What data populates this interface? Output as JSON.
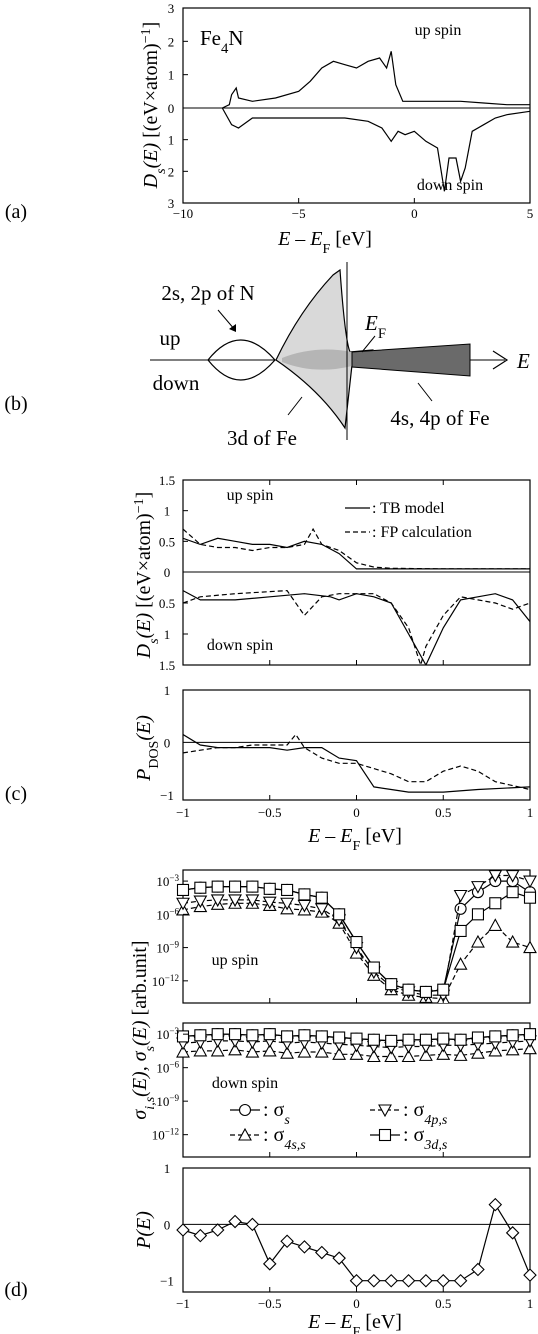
{
  "panel_labels": {
    "a": "(a)",
    "b": "(b)",
    "c": "(c)",
    "d": "(d)"
  },
  "xlabel": {
    "E": "E",
    "dash": "–",
    "EF": "E",
    "F_sub": "F",
    "unit": "[eV]"
  },
  "a": {
    "title": "Fe",
    "title_sub": "4",
    "title_end": "N",
    "up_label": "up  spin",
    "down_label": "down  spin",
    "ylabel": "D",
    "ylabel_sub": "s",
    "ylabel_arg": "(E)",
    "yunit": "[(eV×atom)",
    "yunit_exp": "−1",
    "yunit_close": "]",
    "xticks": [
      "−10",
      "−5",
      "0",
      "5"
    ],
    "up_ticks": [
      "3",
      "2",
      "1",
      "0"
    ],
    "down_ticks": [
      "1",
      "2",
      "3"
    ]
  },
  "b": {
    "n_label": "2s, 2p of N",
    "ef_label": "E",
    "ef_sub": "F",
    "up": "up",
    "down": "down",
    "fe3d": "3d of Fe",
    "fe4sp": "4s, 4p of Fe",
    "axis": "E"
  },
  "c": {
    "up_label": "up  spin",
    "down_label": "down  spin",
    "legend": [
      ": TB  model",
      ": FP  calculation"
    ],
    "up_ticks": [
      "1.5",
      "1",
      "0.5",
      "0"
    ],
    "down_ticks": [
      "0.5",
      "1",
      "1.5"
    ],
    "p_ticks": [
      "1",
      "0",
      "−1"
    ],
    "xticks": [
      "−1",
      "−0.5",
      "0",
      "0.5",
      "1"
    ],
    "ylabel": "D",
    "ylabel_sub": "s",
    "ylabel_arg": "(E)",
    "yunit": "[(eV×atom)",
    "yunit_exp": "−1",
    "yunit_close": "]",
    "pylabel": "P",
    "pylabel_sub": "DOS",
    "pylabel_arg": "(E)"
  },
  "d": {
    "up_label": "up  spin",
    "down_label": "down  spin",
    "yticks": [
      {
        "b": "10",
        "e": "−3"
      },
      {
        "b": "10",
        "e": "−6"
      },
      {
        "b": "10",
        "e": "−9"
      },
      {
        "b": "10",
        "e": "−12"
      }
    ],
    "p_ticks": [
      "1",
      "0",
      "−1"
    ],
    "xticks": [
      "−1",
      "−0.5",
      "0",
      "0.5",
      "1"
    ],
    "ylabel": "σ",
    "ylabel_sub": "i,s",
    "ylabel_arg": "(E),  σ",
    "ylabel_sub2": "s",
    "ylabel_arg2": "(E)",
    "yunit": "[arb.unit]",
    "pylabel": "P(E)",
    "legend": [
      {
        "marker": "circle",
        "sym": ": σ",
        "sub": "s"
      },
      {
        "marker": "triangle",
        "sym": ": σ",
        "sub": "4s,s"
      },
      {
        "marker": "nabla",
        "sym": ": σ",
        "sub": "4p,s"
      },
      {
        "marker": "square",
        "sym": ": σ",
        "sub": "3d,s"
      }
    ]
  },
  "chart_data": [
    {
      "type": "line",
      "title": "Fe4N",
      "xlabel": "E − EF [eV]",
      "ylabel": "Ds(E) [(eV×atom)−1]",
      "xlim": [
        -10,
        5
      ],
      "ylim": [
        -3,
        3
      ],
      "series": [
        {
          "name": "up spin",
          "x": [
            -8.3,
            -8.0,
            -7.9,
            -7.7,
            -7.6,
            -7.0,
            -6.0,
            -5.0,
            -4.5,
            -4.0,
            -3.5,
            -3.0,
            -2.5,
            -2.0,
            -1.5,
            -1.2,
            -1.0,
            -0.8,
            -0.5,
            0.0,
            0.5,
            1.0,
            2.0,
            3.0,
            4.0,
            5.0
          ],
          "y": [
            0.0,
            0.1,
            0.4,
            0.6,
            0.3,
            0.2,
            0.3,
            0.5,
            0.8,
            1.2,
            1.4,
            1.3,
            1.2,
            1.4,
            1.5,
            1.2,
            1.7,
            0.7,
            0.2,
            0.2,
            0.2,
            0.2,
            0.2,
            0.15,
            0.1,
            0.1
          ]
        },
        {
          "name": "down spin",
          "x": [
            -8.3,
            -7.9,
            -7.6,
            -7.0,
            -6.0,
            -5.0,
            -4.0,
            -3.0,
            -2.0,
            -1.4,
            -1.2,
            -1.0,
            -0.7,
            -0.4,
            0.0,
            0.5,
            1.0,
            1.3,
            1.5,
            1.8,
            2.0,
            2.2,
            2.5,
            3.0,
            3.5,
            4.0,
            5.0
          ],
          "y": [
            0.0,
            -0.5,
            -0.6,
            -0.3,
            -0.3,
            -0.3,
            -0.3,
            -0.3,
            -0.4,
            -0.6,
            -0.8,
            -1.0,
            -0.7,
            -0.8,
            -0.7,
            -1.0,
            -1.2,
            -2.5,
            -1.5,
            -1.5,
            -2.2,
            -1.8,
            -0.7,
            -0.5,
            -0.3,
            -0.2,
            -0.1
          ]
        }
      ]
    },
    {
      "type": "line",
      "xlabel": "E − EF [eV]",
      "ylabel": "Ds(E) up",
      "xlim": [
        -1,
        1
      ],
      "ylim": [
        0,
        1.5
      ],
      "series": [
        {
          "name": "TB model",
          "x": [
            -1.0,
            -0.9,
            -0.8,
            -0.7,
            -0.6,
            -0.5,
            -0.4,
            -0.3,
            -0.2,
            -0.1,
            0.0,
            0.1,
            0.2,
            0.5,
            1.0
          ],
          "y": [
            0.55,
            0.45,
            0.55,
            0.5,
            0.45,
            0.45,
            0.4,
            0.5,
            0.45,
            0.3,
            0.05,
            0.05,
            0.05,
            0.05,
            0.05
          ]
        },
        {
          "name": "FP calculation",
          "x": [
            -1.0,
            -0.9,
            -0.8,
            -0.7,
            -0.6,
            -0.5,
            -0.4,
            -0.3,
            -0.25,
            -0.2,
            -0.1,
            0.0,
            0.1,
            0.2,
            0.5,
            1.0
          ],
          "y": [
            0.7,
            0.45,
            0.4,
            0.4,
            0.35,
            0.4,
            0.4,
            0.45,
            0.7,
            0.45,
            0.35,
            0.15,
            0.08,
            0.06,
            0.05,
            0.05
          ]
        }
      ]
    },
    {
      "type": "line",
      "xlabel": "E − EF [eV]",
      "ylabel": "Ds(E) down",
      "xlim": [
        -1,
        1
      ],
      "ylim": [
        0,
        1.5
      ],
      "series": [
        {
          "name": "TB model",
          "x": [
            -1.0,
            -0.9,
            -0.7,
            -0.5,
            -0.3,
            -0.15,
            -0.1,
            0.0,
            0.1,
            0.2,
            0.3,
            0.4,
            0.5,
            0.6,
            0.7,
            0.8,
            0.9,
            1.0
          ],
          "y": [
            0.3,
            0.45,
            0.45,
            0.4,
            0.35,
            0.4,
            0.45,
            0.35,
            0.4,
            0.5,
            1.0,
            1.5,
            0.9,
            0.45,
            0.4,
            0.35,
            0.45,
            0.8
          ]
        },
        {
          "name": "FP calculation",
          "x": [
            -1.0,
            -0.9,
            -0.7,
            -0.4,
            -0.3,
            -0.2,
            -0.1,
            0.0,
            0.1,
            0.2,
            0.3,
            0.37,
            0.4,
            0.5,
            0.6,
            0.7,
            0.8,
            0.9,
            1.0
          ],
          "y": [
            0.5,
            0.4,
            0.35,
            0.3,
            0.7,
            0.4,
            0.35,
            0.35,
            0.35,
            0.5,
            0.9,
            1.5,
            1.2,
            0.7,
            0.4,
            0.45,
            0.5,
            0.6,
            0.5
          ]
        }
      ]
    },
    {
      "type": "line",
      "xlabel": "E − EF [eV]",
      "ylabel": "PDOS(E)",
      "xlim": [
        -1,
        1
      ],
      "ylim": [
        -1,
        1
      ],
      "series": [
        {
          "name": "TB model",
          "x": [
            -1.0,
            -0.9,
            -0.8,
            -0.7,
            -0.6,
            -0.5,
            -0.4,
            -0.3,
            -0.2,
            -0.1,
            0.0,
            0.1,
            0.2,
            0.3,
            0.5,
            0.7,
            1.0
          ],
          "y": [
            0.15,
            -0.05,
            -0.1,
            -0.1,
            -0.1,
            -0.1,
            -0.15,
            -0.1,
            -0.1,
            -0.3,
            -0.35,
            -0.85,
            -0.9,
            -0.95,
            -0.95,
            -0.9,
            -0.85
          ]
        },
        {
          "name": "FP calculation",
          "x": [
            -1.0,
            -0.9,
            -0.8,
            -0.7,
            -0.6,
            -0.5,
            -0.4,
            -0.35,
            -0.3,
            -0.2,
            -0.1,
            0.0,
            0.1,
            0.2,
            0.3,
            0.4,
            0.5,
            0.6,
            0.7,
            0.8,
            1.0
          ],
          "y": [
            -0.2,
            -0.15,
            -0.1,
            -0.1,
            -0.05,
            -0.05,
            -0.05,
            0.15,
            -0.1,
            -0.3,
            -0.4,
            -0.4,
            -0.5,
            -0.6,
            -0.75,
            -0.75,
            -0.55,
            -0.45,
            -0.55,
            -0.75,
            -0.9
          ]
        }
      ]
    },
    {
      "type": "line",
      "xlabel": "E − EF [eV]",
      "ylabel": "σs(E) up (log10)",
      "xlim": [
        -1,
        1
      ],
      "ylim": [
        -14,
        -2
      ],
      "series": [
        {
          "name": "σs",
          "x": [
            -1.0,
            -0.9,
            -0.8,
            -0.7,
            -0.6,
            -0.5,
            -0.4,
            -0.3,
            -0.2,
            -0.1,
            0.0,
            0.1,
            0.2,
            0.3,
            0.4,
            0.5,
            0.6,
            0.7,
            0.8,
            0.9,
            1.0
          ],
          "y": [
            -3.8,
            -3.6,
            -3.5,
            -3.5,
            -3.5,
            -3.7,
            -3.8,
            -4.2,
            -4.5,
            -6.0,
            -8.5,
            -10.8,
            -12.3,
            -12.8,
            -13.0,
            -12.8,
            -5.5,
            -4.0,
            -3.0,
            -3.0,
            -4.0
          ]
        },
        {
          "name": "σ4s,s",
          "x": [
            -1.0,
            -0.9,
            -0.8,
            -0.7,
            -0.6,
            -0.5,
            -0.4,
            -0.3,
            -0.2,
            -0.1,
            0.0,
            0.1,
            0.2,
            0.3,
            0.4,
            0.5,
            0.6,
            0.7,
            0.8,
            0.9,
            1.0
          ],
          "y": [
            -5.6,
            -5.3,
            -5.1,
            -5.0,
            -5.0,
            -5.2,
            -5.5,
            -5.6,
            -5.8,
            -6.8,
            -9.5,
            -11.5,
            -12.8,
            -13.3,
            -13.5,
            -13.6,
            -10.5,
            -8.5,
            -7.0,
            -8.5,
            -9.0
          ]
        },
        {
          "name": "σ4p,s",
          "x": [
            -1.0,
            -0.9,
            -0.8,
            -0.7,
            -0.6,
            -0.5,
            -0.4,
            -0.3,
            -0.2,
            -0.1,
            0.0,
            0.1,
            0.2,
            0.3,
            0.4,
            0.5,
            0.6,
            0.7,
            0.8,
            0.9,
            1.0
          ],
          "y": [
            -5.0,
            -4.8,
            -4.7,
            -4.7,
            -4.7,
            -4.9,
            -5.0,
            -5.2,
            -5.5,
            -6.5,
            -9.0,
            -11.2,
            -12.5,
            -13.0,
            -13.3,
            -13.3,
            -4.3,
            -3.5,
            -2.5,
            -2.5,
            -3.0
          ]
        },
        {
          "name": "σ3d,s",
          "x": [
            -1.0,
            -0.9,
            -0.8,
            -0.7,
            -0.6,
            -0.5,
            -0.4,
            -0.3,
            -0.2,
            -0.1,
            0.0,
            0.1,
            0.2,
            0.3,
            0.4,
            0.5,
            0.6,
            0.7,
            0.8,
            0.9,
            1.0
          ],
          "y": [
            -3.8,
            -3.6,
            -3.5,
            -3.5,
            -3.5,
            -3.7,
            -3.8,
            -4.2,
            -4.5,
            -6.0,
            -8.5,
            -10.8,
            -12.3,
            -12.8,
            -13.0,
            -12.8,
            -7.5,
            -6.0,
            -5.0,
            -4.0,
            -4.5
          ]
        }
      ]
    },
    {
      "type": "line",
      "xlabel": "E − EF [eV]",
      "ylabel": "σs(E) down (log10)",
      "xlim": [
        -1,
        1
      ],
      "ylim": [
        -14,
        -2
      ],
      "series": [
        {
          "name": "σs",
          "x": [
            -1.0,
            -0.9,
            -0.8,
            -0.7,
            -0.6,
            -0.5,
            -0.4,
            -0.3,
            -0.2,
            -0.1,
            0.0,
            0.1,
            0.2,
            0.3,
            0.4,
            0.5,
            0.6,
            0.7,
            0.8,
            0.9,
            1.0
          ],
          "y": [
            -3.2,
            -3.1,
            -3.0,
            -3.0,
            -3.1,
            -3.0,
            -3.2,
            -3.1,
            -3.2,
            -3.3,
            -3.4,
            -3.5,
            -3.6,
            -3.5,
            -3.5,
            -3.4,
            -3.5,
            -3.3,
            -3.2,
            -3.1,
            -3.0
          ]
        },
        {
          "name": "σ4s,s",
          "x": [
            -1.0,
            -0.9,
            -0.8,
            -0.7,
            -0.6,
            -0.5,
            -0.4,
            -0.3,
            -0.2,
            -0.1,
            0.0,
            0.1,
            0.2,
            0.3,
            0.4,
            0.5,
            0.6,
            0.7,
            0.8,
            0.9,
            1.0
          ],
          "y": [
            -4.6,
            -4.5,
            -4.5,
            -4.4,
            -4.6,
            -4.5,
            -4.7,
            -4.6,
            -4.6,
            -4.8,
            -4.8,
            -5.0,
            -5.0,
            -5.0,
            -4.9,
            -4.8,
            -4.9,
            -4.7,
            -4.5,
            -4.4,
            -4.3
          ]
        },
        {
          "name": "σ4p,s",
          "x": [
            -1.0,
            -0.9,
            -0.8,
            -0.7,
            -0.6,
            -0.5,
            -0.4,
            -0.3,
            -0.2,
            -0.1,
            0.0,
            0.1,
            0.2,
            0.3,
            0.4,
            0.5,
            0.6,
            0.7,
            0.8,
            0.9,
            1.0
          ],
          "y": [
            -3.8,
            -3.7,
            -3.6,
            -3.6,
            -3.7,
            -3.6,
            -3.8,
            -3.7,
            -3.8,
            -3.9,
            -4.0,
            -4.1,
            -4.2,
            -4.1,
            -4.1,
            -4.0,
            -4.0,
            -3.9,
            -3.8,
            -3.7,
            -3.6
          ]
        },
        {
          "name": "σ3d,s",
          "x": [
            -1.0,
            -0.9,
            -0.8,
            -0.7,
            -0.6,
            -0.5,
            -0.4,
            -0.3,
            -0.2,
            -0.1,
            0.0,
            0.1,
            0.2,
            0.3,
            0.4,
            0.5,
            0.6,
            0.7,
            0.8,
            0.9,
            1.0
          ],
          "y": [
            -3.2,
            -3.1,
            -3.0,
            -3.0,
            -3.1,
            -3.0,
            -3.2,
            -3.1,
            -3.2,
            -3.3,
            -3.4,
            -3.5,
            -3.6,
            -3.5,
            -3.5,
            -3.4,
            -3.5,
            -3.3,
            -3.2,
            -3.1,
            -3.0
          ]
        }
      ]
    },
    {
      "type": "line",
      "xlabel": "E − EF [eV]",
      "ylabel": "P(E)",
      "xlim": [
        -1,
        1
      ],
      "ylim": [
        -1.2,
        1
      ],
      "series": [
        {
          "name": "P(E)",
          "x": [
            -1.0,
            -0.9,
            -0.8,
            -0.7,
            -0.6,
            -0.5,
            -0.4,
            -0.3,
            -0.2,
            -0.1,
            0.0,
            0.1,
            0.2,
            0.3,
            0.4,
            0.5,
            0.6,
            0.7,
            0.8,
            0.9,
            1.0
          ],
          "y": [
            -0.1,
            -0.2,
            -0.1,
            0.05,
            0.0,
            -0.7,
            -0.3,
            -0.4,
            -0.5,
            -0.6,
            -1.0,
            -1.0,
            -1.0,
            -1.0,
            -1.0,
            -1.0,
            -1.0,
            -0.8,
            0.35,
            -0.15,
            -0.9
          ]
        }
      ]
    }
  ]
}
